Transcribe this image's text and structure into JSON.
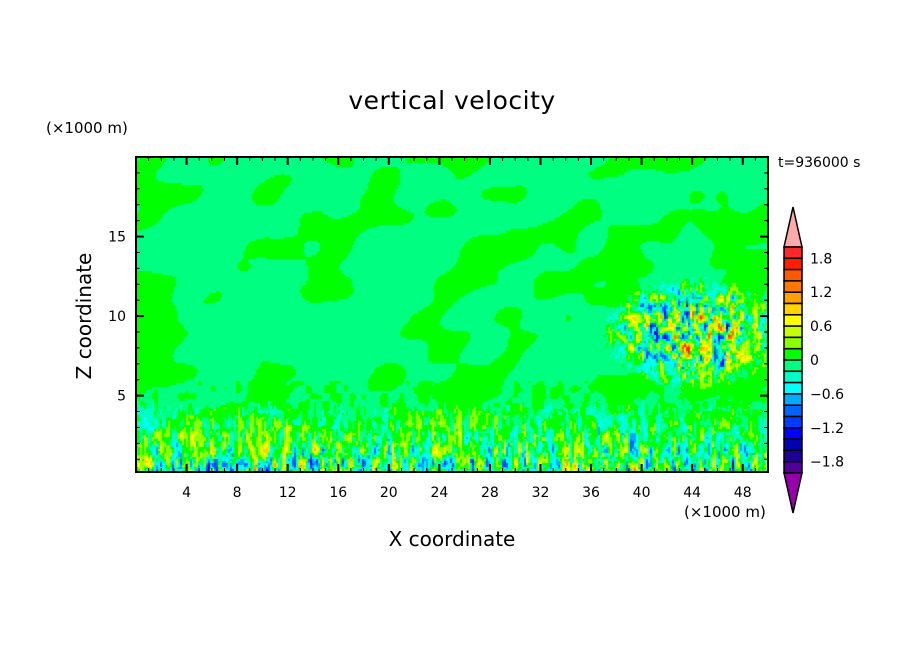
{
  "chart_data": {
    "type": "heatmap",
    "title": "vertical velocity",
    "xlabel": "X coordinate",
    "ylabel": "Z coordinate",
    "x_unit": "(×1000 m)",
    "y_unit": "(×1000 m)",
    "annotation": "t=936000 s",
    "xlim": [
      0,
      50
    ],
    "ylim": [
      0.2,
      20
    ],
    "x_ticks": [
      "4",
      "8",
      "12",
      "16",
      "20",
      "24",
      "28",
      "32",
      "36",
      "40",
      "44",
      "48"
    ],
    "y_ticks": [
      "5",
      "10",
      "15"
    ],
    "colorbar": {
      "levels_min": -2.0,
      "levels_max": 2.0,
      "step": 0.2,
      "tick_labels": [
        "1.8",
        "1.2",
        "0.6",
        "0",
        "−0.6",
        "−1.2",
        "−1.8"
      ],
      "colors_top_to_bottom": [
        "#ff2828",
        "#ff1e00",
        "#ff5a00",
        "#ff7800",
        "#ffa000",
        "#ffd200",
        "#ffff00",
        "#c8ff00",
        "#8cff00",
        "#00ff00",
        "#00ff80",
        "#00ffc8",
        "#00ffff",
        "#00aaff",
        "#0064ff",
        "#003cff",
        "#0000ff",
        "#0000b4",
        "#1e0096",
        "#500096"
      ],
      "over_color": "#ffaaaa",
      "under_color": "#9600aa"
    },
    "field_description": {
      "background_value": -0.1,
      "upper_bands": "diagonal 0 to 0.2 streaks",
      "turbulent_layer_top": 5,
      "active_region": {
        "x": [
          37,
          50
        ],
        "z": [
          6,
          12
        ],
        "amplitude": 1.4
      }
    }
  }
}
